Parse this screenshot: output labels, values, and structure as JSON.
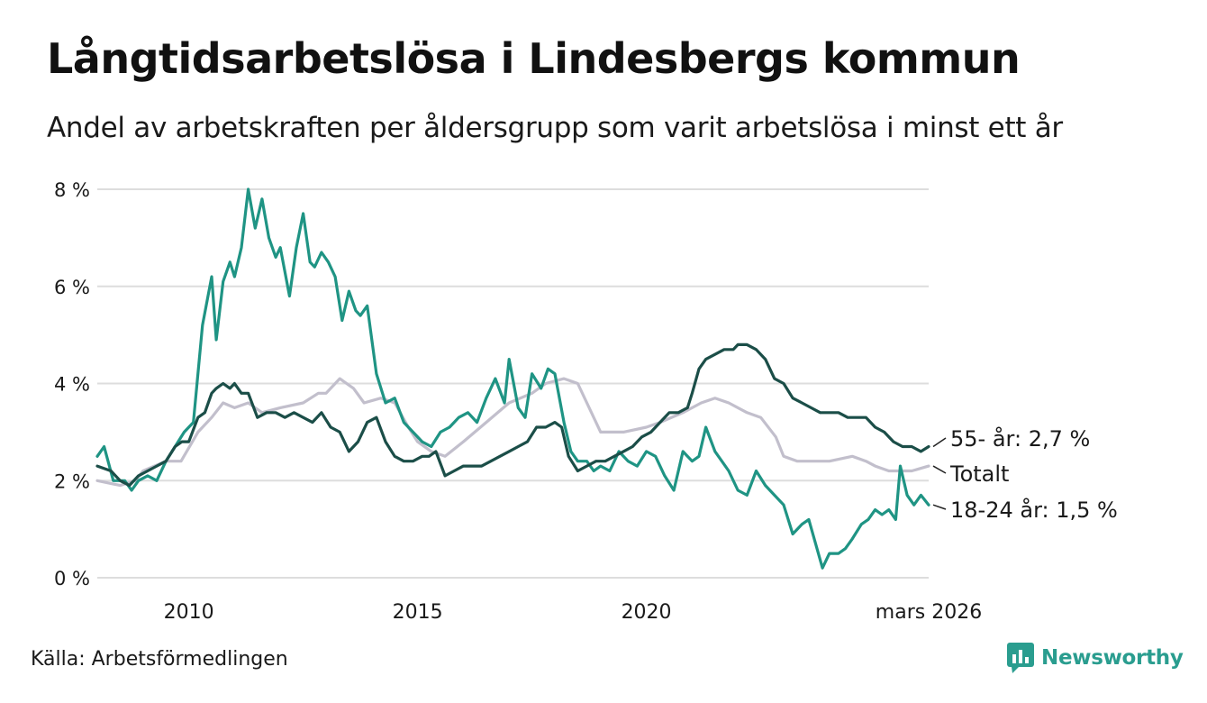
{
  "title": "Långtidsarbetslösa i Lindesbergs kommun",
  "subtitle": "Andel av arbetskraften per åldersgrupp som varit arbetslösa i minst ett år",
  "source": "Källa: Arbetsförmedlingen",
  "brand": {
    "name": "Newsworthy",
    "icon": "newsworthy-logo-icon",
    "color": "#2a9d8f"
  },
  "chart_data": {
    "type": "line",
    "title": "Långtidsarbetslösa i Lindesbergs kommun",
    "xlabel": "",
    "ylabel": "",
    "xlim": [
      2008.0,
      2026.17
    ],
    "ylim": [
      0,
      8
    ],
    "grid": true,
    "yticks": [
      {
        "value": 0,
        "label": "0 %"
      },
      {
        "value": 2,
        "label": "2 %"
      },
      {
        "value": 4,
        "label": "4 %"
      },
      {
        "value": 6,
        "label": "6 %"
      },
      {
        "value": 8,
        "label": "8 %"
      }
    ],
    "xticks": [
      {
        "value": 2010,
        "label": "2010"
      },
      {
        "value": 2015,
        "label": "2015"
      },
      {
        "value": 2020,
        "label": "2020"
      },
      {
        "value": 2026.17,
        "label": "mars 2026"
      }
    ],
    "series": [
      {
        "name": "Totalt",
        "label": "Totalt",
        "color": "#c2bfcc",
        "x": [
          2008.0,
          2008.5,
          2008.83,
          2009.0,
          2009.5,
          2009.83,
          2010.2,
          2010.5,
          2010.75,
          2011.0,
          2011.3,
          2011.6,
          2012.0,
          2012.5,
          2012.83,
          2013.0,
          2013.3,
          2013.6,
          2013.83,
          2014.2,
          2014.5,
          2014.8,
          2015.0,
          2015.3,
          2015.6,
          2016.0,
          2016.5,
          2017.0,
          2017.5,
          2017.8,
          2018.2,
          2018.5,
          2019.0,
          2019.5,
          2020.0,
          2020.3,
          2020.8,
          2021.2,
          2021.5,
          2021.8,
          2022.2,
          2022.5,
          2022.83,
          2023.0,
          2023.3,
          2023.6,
          2024.0,
          2024.5,
          2024.8,
          2025.0,
          2025.3,
          2025.5,
          2025.8,
          2026.17
        ],
        "values": [
          2.0,
          1.9,
          2.0,
          2.2,
          2.4,
          2.4,
          3.0,
          3.3,
          3.6,
          3.5,
          3.6,
          3.4,
          3.5,
          3.6,
          3.8,
          3.8,
          4.1,
          3.9,
          3.6,
          3.7,
          3.6,
          3.1,
          2.8,
          2.6,
          2.5,
          2.8,
          3.2,
          3.6,
          3.8,
          4.0,
          4.1,
          4.0,
          3.0,
          3.0,
          3.1,
          3.2,
          3.4,
          3.6,
          3.7,
          3.6,
          3.4,
          3.3,
          2.9,
          2.5,
          2.4,
          2.4,
          2.4,
          2.5,
          2.4,
          2.3,
          2.2,
          2.2,
          2.2,
          2.3
        ]
      },
      {
        "name": "18-24 år",
        "label": "18-24 år: 1,5 %",
        "color": "#1f9484",
        "x": [
          2008.0,
          2008.15,
          2008.35,
          2008.6,
          2008.75,
          2008.9,
          2009.1,
          2009.3,
          2009.5,
          2009.7,
          2009.9,
          2010.1,
          2010.3,
          2010.5,
          2010.6,
          2010.75,
          2010.9,
          2011.0,
          2011.15,
          2011.3,
          2011.45,
          2011.6,
          2011.75,
          2011.9,
          2012.0,
          2012.2,
          2012.35,
          2012.5,
          2012.65,
          2012.75,
          2012.9,
          2013.05,
          2013.2,
          2013.35,
          2013.5,
          2013.65,
          2013.75,
          2013.9,
          2014.1,
          2014.3,
          2014.5,
          2014.7,
          2014.9,
          2015.1,
          2015.3,
          2015.5,
          2015.7,
          2015.9,
          2016.1,
          2016.3,
          2016.5,
          2016.7,
          2016.9,
          2017.0,
          2017.2,
          2017.35,
          2017.5,
          2017.7,
          2017.85,
          2018.0,
          2018.2,
          2018.35,
          2018.5,
          2018.7,
          2018.85,
          2019.0,
          2019.2,
          2019.4,
          2019.6,
          2019.8,
          2020.0,
          2020.2,
          2020.4,
          2020.6,
          2020.8,
          2021.0,
          2021.15,
          2021.3,
          2021.5,
          2021.65,
          2021.8,
          2022.0,
          2022.2,
          2022.4,
          2022.6,
          2022.8,
          2023.0,
          2023.2,
          2023.4,
          2023.55,
          2023.7,
          2023.85,
          2024.0,
          2024.2,
          2024.35,
          2024.5,
          2024.7,
          2024.85,
          2025.0,
          2025.15,
          2025.3,
          2025.45,
          2025.55,
          2025.7,
          2025.85,
          2026.0,
          2026.17
        ],
        "values": [
          2.5,
          2.7,
          2.0,
          2.0,
          1.8,
          2.0,
          2.1,
          2.0,
          2.4,
          2.7,
          3.0,
          3.2,
          5.2,
          6.2,
          4.9,
          6.1,
          6.5,
          6.2,
          6.8,
          8.0,
          7.2,
          7.8,
          7.0,
          6.6,
          6.8,
          5.8,
          6.8,
          7.5,
          6.5,
          6.4,
          6.7,
          6.5,
          6.2,
          5.3,
          5.9,
          5.5,
          5.4,
          5.6,
          4.2,
          3.6,
          3.7,
          3.2,
          3.0,
          2.8,
          2.7,
          3.0,
          3.1,
          3.3,
          3.4,
          3.2,
          3.7,
          4.1,
          3.6,
          4.5,
          3.5,
          3.3,
          4.2,
          3.9,
          4.3,
          4.2,
          3.2,
          2.6,
          2.4,
          2.4,
          2.2,
          2.3,
          2.2,
          2.6,
          2.4,
          2.3,
          2.6,
          2.5,
          2.1,
          1.8,
          2.6,
          2.4,
          2.5,
          3.1,
          2.6,
          2.4,
          2.2,
          1.8,
          1.7,
          2.2,
          1.9,
          1.7,
          1.5,
          0.9,
          1.1,
          1.2,
          0.7,
          0.2,
          0.5,
          0.5,
          0.6,
          0.8,
          1.1,
          1.2,
          1.4,
          1.3,
          1.4,
          1.2,
          2.3,
          1.7,
          1.5,
          1.7,
          1.5
        ]
      },
      {
        "name": "55- år",
        "label": "55- år: 2,7 %",
        "color": "#1b4e48",
        "x": [
          2008.0,
          2008.3,
          2008.5,
          2008.7,
          2008.9,
          2009.1,
          2009.3,
          2009.5,
          2009.7,
          2009.85,
          2010.0,
          2010.2,
          2010.35,
          2010.5,
          2010.6,
          2010.75,
          2010.9,
          2011.0,
          2011.15,
          2011.3,
          2011.5,
          2011.7,
          2011.9,
          2012.1,
          2012.3,
          2012.5,
          2012.7,
          2012.9,
          2013.1,
          2013.3,
          2013.5,
          2013.7,
          2013.9,
          2014.1,
          2014.3,
          2014.5,
          2014.7,
          2014.9,
          2015.1,
          2015.25,
          2015.4,
          2015.6,
          2015.8,
          2016.0,
          2016.2,
          2016.4,
          2016.6,
          2016.8,
          2017.0,
          2017.2,
          2017.4,
          2017.6,
          2017.8,
          2018.0,
          2018.15,
          2018.3,
          2018.5,
          2018.7,
          2018.9,
          2019.1,
          2019.3,
          2019.5,
          2019.7,
          2019.9,
          2020.1,
          2020.3,
          2020.5,
          2020.7,
          2020.9,
          2021.0,
          2021.15,
          2021.3,
          2021.5,
          2021.7,
          2021.9,
          2022.0,
          2022.2,
          2022.4,
          2022.6,
          2022.8,
          2023.0,
          2023.2,
          2023.4,
          2023.6,
          2023.8,
          2024.0,
          2024.2,
          2024.4,
          2024.6,
          2024.8,
          2025.0,
          2025.2,
          2025.4,
          2025.6,
          2025.8,
          2026.0,
          2026.17
        ],
        "values": [
          2.3,
          2.2,
          2.0,
          1.9,
          2.1,
          2.2,
          2.3,
          2.4,
          2.7,
          2.8,
          2.8,
          3.3,
          3.4,
          3.8,
          3.9,
          4.0,
          3.9,
          4.0,
          3.8,
          3.8,
          3.3,
          3.4,
          3.4,
          3.3,
          3.4,
          3.3,
          3.2,
          3.4,
          3.1,
          3.0,
          2.6,
          2.8,
          3.2,
          3.3,
          2.8,
          2.5,
          2.4,
          2.4,
          2.5,
          2.5,
          2.6,
          2.1,
          2.2,
          2.3,
          2.3,
          2.3,
          2.4,
          2.5,
          2.6,
          2.7,
          2.8,
          3.1,
          3.1,
          3.2,
          3.1,
          2.5,
          2.2,
          2.3,
          2.4,
          2.4,
          2.5,
          2.6,
          2.7,
          2.9,
          3.0,
          3.2,
          3.4,
          3.4,
          3.5,
          3.8,
          4.3,
          4.5,
          4.6,
          4.7,
          4.7,
          4.8,
          4.8,
          4.7,
          4.5,
          4.1,
          4.0,
          3.7,
          3.6,
          3.5,
          3.4,
          3.4,
          3.4,
          3.3,
          3.3,
          3.3,
          3.1,
          3.0,
          2.8,
          2.7,
          2.7,
          2.6,
          2.7
        ]
      }
    ],
    "end_labels_order": [
      "55- år",
      "Totalt",
      "18-24 år"
    ]
  }
}
